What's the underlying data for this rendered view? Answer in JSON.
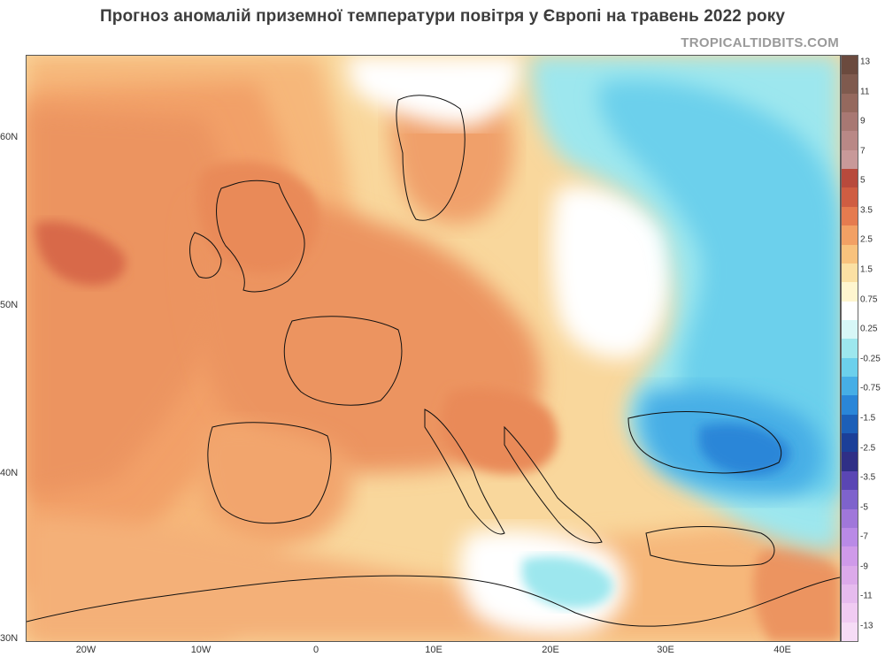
{
  "header": {
    "title": "Прогноз аномалій приземної температури повітря у Європі на травень 2022 року",
    "credit": "TROPICALTIDBITS.COM"
  },
  "axes": {
    "lat_labels": [
      "60N",
      "50N",
      "40N",
      "30N"
    ],
    "lon_labels": [
      "20W",
      "10W",
      "0",
      "10E",
      "20E",
      "30E",
      "40E"
    ]
  },
  "colorbar": {
    "labels": [
      "13",
      "11",
      "9",
      "7",
      "5",
      "3.5",
      "2.5",
      "1.5",
      "0.75",
      "0.25",
      "-0.25",
      "-0.75",
      "-1.5",
      "-2.5",
      "-3.5",
      "-5",
      "-7",
      "-9",
      "-11",
      "-13"
    ],
    "colors": [
      "#6b4a3e",
      "#7f5a4e",
      "#95695e",
      "#a87873",
      "#b98886",
      "#c89999",
      "#b84a3c",
      "#cf5d42",
      "#e57b4f",
      "#f2a064",
      "#f8c27d",
      "#fbe0a3",
      "#fff6cf",
      "#ffffff",
      "#d7f7f7",
      "#9de7ee",
      "#6cd0ec",
      "#46aee6",
      "#2a86d8",
      "#1c5fb8",
      "#1b3f98",
      "#2f2f86",
      "#5a46b4",
      "#7e63cc",
      "#a077da",
      "#b98ae6",
      "#cf9ae9",
      "#dcaaea",
      "#e6bbee",
      "#f0cbf2",
      "#f6dcf6"
    ],
    "colormap_name": "temperature anomaly"
  }
}
